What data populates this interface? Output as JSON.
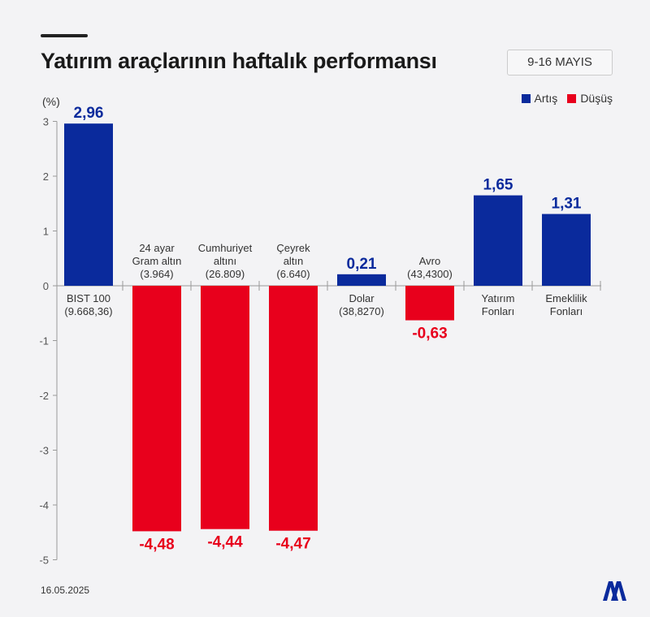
{
  "header": {
    "title": "Yatırım araçlarının haftalık performansı",
    "date_range": "9-16 MAYIS"
  },
  "footer": {
    "date": "16.05.2025",
    "logo_text": "AA"
  },
  "colors": {
    "increase": "#0a2a9c",
    "decrease": "#e8001c"
  },
  "chart_data": {
    "type": "bar",
    "title": "Yatırım araçlarının haftalık performansı",
    "ylabel": "(%)",
    "ylim": [
      -5,
      3
    ],
    "yticks": [
      3,
      2,
      1,
      0,
      -1,
      -2,
      -3,
      -4,
      -5
    ],
    "legend": {
      "placement": "top-right",
      "entries": [
        "Artış",
        "Düşüş"
      ]
    },
    "categories": [
      {
        "lines": [
          "BIST 100",
          "(9.668,36)"
        ]
      },
      {
        "lines": [
          "24 ayar",
          "Gram altın",
          "(3.964)"
        ]
      },
      {
        "lines": [
          "Cumhuriyet",
          "altını",
          "(26.809)"
        ]
      },
      {
        "lines": [
          "Çeyrek",
          "altın",
          "(6.640)"
        ]
      },
      {
        "lines": [
          "Dolar",
          "(38,8270)"
        ]
      },
      {
        "lines": [
          "Avro",
          "(43,4300)"
        ]
      },
      {
        "lines": [
          "Yatırım",
          "Fonları"
        ]
      },
      {
        "lines": [
          "Emeklilik",
          "Fonları"
        ]
      }
    ],
    "values": [
      2.96,
      -4.48,
      -4.44,
      -4.47,
      0.21,
      -0.63,
      1.65,
      1.31
    ],
    "value_labels": [
      "2,96",
      "-4,48",
      "-4,44",
      "-4,47",
      "0,21",
      "-0,63",
      "1,65",
      "1,31"
    ]
  }
}
